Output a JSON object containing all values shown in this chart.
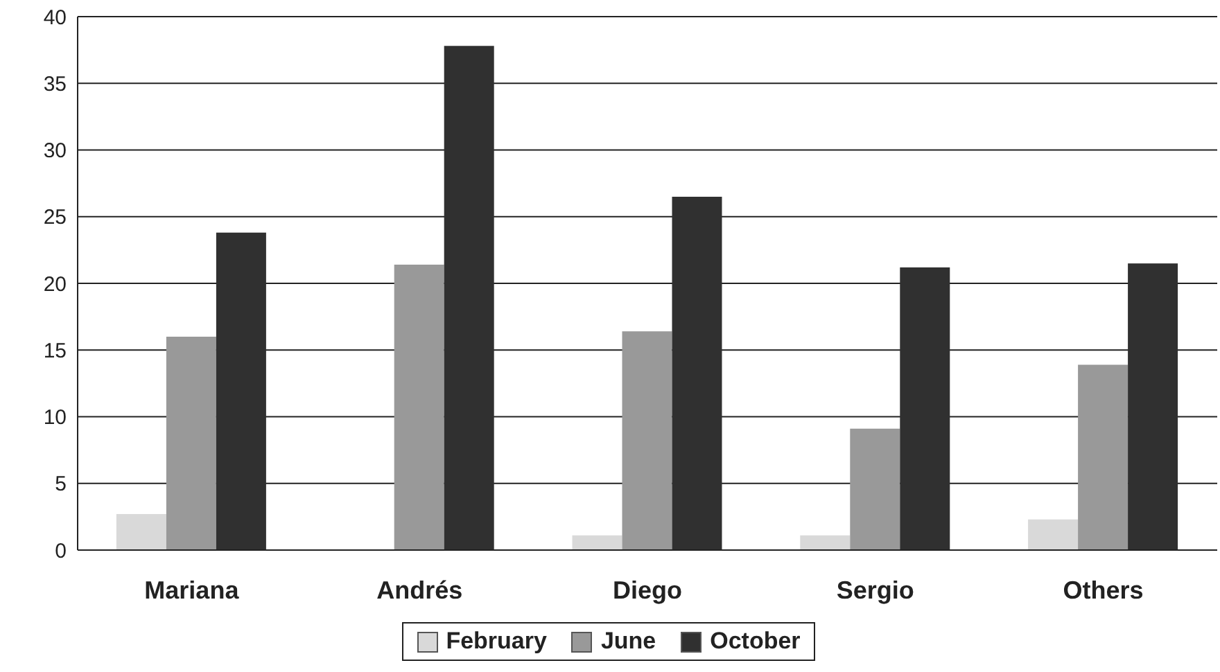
{
  "chart_data": {
    "type": "bar",
    "categories": [
      "Mariana",
      "Andrés",
      "Diego",
      "Sergio",
      "Others"
    ],
    "series": [
      {
        "name": "February",
        "color": "#d9d9d9",
        "values": [
          2.7,
          0,
          1.1,
          1.1,
          2.3
        ]
      },
      {
        "name": "June",
        "color": "#999999",
        "values": [
          16,
          21.4,
          16.4,
          9.1,
          13.9
        ]
      },
      {
        "name": "October",
        "color": "#303030",
        "values": [
          23.8,
          37.8,
          26.5,
          21.2,
          21.5
        ]
      }
    ],
    "ylim": [
      0,
      40
    ],
    "yticks": [
      0,
      5,
      10,
      15,
      20,
      25,
      30,
      35,
      40
    ],
    "grid": "y",
    "legend": "bottom"
  }
}
